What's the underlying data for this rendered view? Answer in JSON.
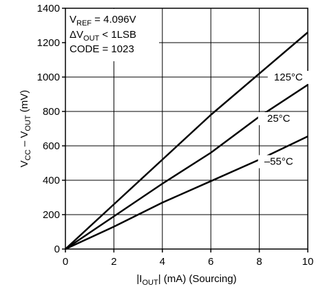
{
  "chart_data": {
    "type": "line",
    "xlabel": {
      "pre": "|I",
      "sub": "OUT",
      "post": "| (mA) (Sourcing)"
    },
    "ylabel": {
      "a": "V",
      "a_sub": "CC",
      "mid": " – V",
      "b_sub": "OUT",
      "post": " (mV)"
    },
    "xlim": [
      0,
      10
    ],
    "ylim": [
      0,
      1400
    ],
    "xticks": [
      0,
      2,
      4,
      6,
      8,
      10
    ],
    "yticks": [
      0,
      200,
      400,
      600,
      800,
      1000,
      1200,
      1400
    ],
    "grid": true,
    "annotations": {
      "line1": {
        "pre": "V",
        "sub": "REF",
        "post": " = 4.096V"
      },
      "line2": {
        "pre": "ΔV",
        "sub": "OUT",
        "post": " < 1LSB"
      },
      "line3": "CODE = 1023"
    },
    "series": [
      {
        "name": "125°C",
        "x": [
          0,
          2,
          4,
          6,
          8,
          10
        ],
        "y": [
          0,
          260,
          520,
          780,
          1020,
          1260
        ]
      },
      {
        "name": "25°C",
        "x": [
          0,
          2,
          4,
          6,
          8,
          10
        ],
        "y": [
          0,
          190,
          380,
          560,
          770,
          955
        ]
      },
      {
        "name": "–55°C",
        "x": [
          0,
          2,
          4,
          6,
          8,
          10
        ],
        "y": [
          0,
          130,
          270,
          395,
          520,
          655
        ]
      }
    ]
  }
}
